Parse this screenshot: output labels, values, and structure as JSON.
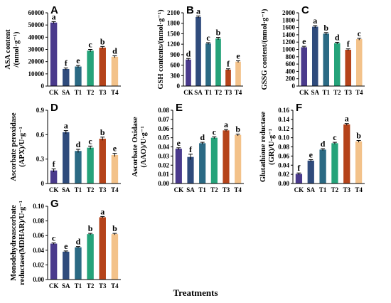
{
  "xlabel": "Treatments",
  "colors": [
    "#4a3a8c",
    "#2f4b7c",
    "#2b6a84",
    "#25a37a",
    "#b5431a",
    "#f3c28a"
  ],
  "chart_data": [
    {
      "type": "bar",
      "panel": "A",
      "categories": [
        "CK",
        "SA",
        "T1",
        "T2",
        "T3",
        "T4"
      ],
      "values": [
        52000,
        14000,
        16000,
        29000,
        31500,
        24000
      ],
      "errors": [
        800,
        800,
        900,
        1000,
        900,
        800
      ],
      "letters": [
        "a",
        "f",
        "e",
        "c",
        "b",
        "d"
      ],
      "ylabel": [
        "ASA content",
        "/(nmol·g⁻¹)"
      ],
      "ylim": [
        0,
        60000
      ],
      "yticks": [
        0,
        10000,
        20000,
        30000,
        40000,
        50000,
        60000
      ],
      "ytick_labels": [
        "0",
        "10000",
        "20000",
        "30000",
        "40000",
        "50000",
        "60000"
      ]
    },
    {
      "type": "bar",
      "panel": "B",
      "categories": [
        "CK",
        "SA",
        "T1",
        "T2",
        "T3",
        "T4"
      ],
      "values": [
        760,
        1980,
        1220,
        1360,
        470,
        700
      ],
      "errors": [
        30,
        30,
        25,
        35,
        25,
        25
      ],
      "letters": [
        "d",
        "a",
        "c",
        "b",
        "f",
        "e"
      ],
      "ylabel": [
        "GSH contents/(nmol·g⁻¹)"
      ],
      "ylim": [
        0,
        2100
      ],
      "yticks": [
        0,
        300,
        600,
        900,
        1200,
        1500,
        1800,
        2100
      ],
      "ytick_labels": [
        "0",
        "300",
        "600",
        "900",
        "1200",
        "1500",
        "1800",
        "2100"
      ]
    },
    {
      "type": "bar",
      "panel": "C",
      "categories": [
        "CK",
        "SA",
        "T1",
        "T2",
        "T3",
        "T4"
      ],
      "values": [
        1060,
        1620,
        1430,
        1170,
        990,
        1280
      ],
      "errors": [
        25,
        30,
        30,
        25,
        25,
        25
      ],
      "letters": [
        "e",
        "a",
        "b",
        "d",
        "f",
        "c"
      ],
      "ylabel": [
        "GSSG content/(nmol·g⁻¹)"
      ],
      "ylim": [
        0,
        2000
      ],
      "yticks": [
        0,
        200,
        400,
        600,
        800,
        1000,
        1200,
        1400,
        1600,
        1800,
        2000
      ],
      "ytick_labels": [
        "0",
        "200",
        "400",
        "600",
        "800",
        "1000",
        "1200",
        "1400",
        "1600",
        "1800",
        "2000"
      ]
    },
    {
      "type": "bar",
      "panel": "D",
      "categories": [
        "CK",
        "SA",
        "T1",
        "T2",
        "T3",
        "T4"
      ],
      "values": [
        0.16,
        0.63,
        0.4,
        0.44,
        0.55,
        0.35
      ],
      "errors": [
        0.02,
        0.02,
        0.02,
        0.02,
        0.02,
        0.02
      ],
      "letters": [
        "f",
        "a",
        "d",
        "c",
        "b",
        "e"
      ],
      "ylabel": [
        "Ascorbate peroxidase",
        "(APX)/U·g⁻¹"
      ],
      "ylim": [
        0,
        0.9
      ],
      "yticks": [
        0,
        0.3,
        0.6,
        0.9
      ],
      "ytick_labels": [
        "0",
        "0.3",
        "0.6",
        "0.9"
      ]
    },
    {
      "type": "bar",
      "panel": "E",
      "categories": [
        "CK",
        "SA",
        "T1",
        "T2",
        "T3",
        "T4"
      ],
      "values": [
        0.038,
        0.029,
        0.044,
        0.05,
        0.058,
        0.053
      ],
      "errors": [
        0.001,
        0.003,
        0.001,
        0.001,
        0.001,
        0.001
      ],
      "letters": [
        "e",
        "f",
        "d",
        "c",
        "a",
        "b"
      ],
      "ylabel": [
        "Ascorbate Oxidase",
        "(AAO)/U·g⁻¹"
      ],
      "ylim": [
        0,
        0.08
      ],
      "yticks": [
        0,
        0.01,
        0.02,
        0.03,
        0.04,
        0.05,
        0.06,
        0.07,
        0.08
      ],
      "ytick_labels": [
        "0.00",
        "0.01",
        "0.02",
        "0.03",
        "0.04",
        "0.05",
        "0.06",
        "0.07",
        "0.08"
      ]
    },
    {
      "type": "bar",
      "panel": "F",
      "categories": [
        "CK",
        "SA",
        "T1",
        "T2",
        "T3",
        "T4"
      ],
      "values": [
        0.021,
        0.05,
        0.074,
        0.088,
        0.129,
        0.092
      ],
      "errors": [
        0.002,
        0.002,
        0.002,
        0.002,
        0.002,
        0.002
      ],
      "letters": [
        "f",
        "e",
        "d",
        "c",
        "a",
        "b"
      ],
      "ylabel": [
        "Glutathione reductase",
        "(GR)/U·g⁻¹"
      ],
      "ylim": [
        0,
        0.16
      ],
      "yticks": [
        0,
        0.02,
        0.04,
        0.06,
        0.08,
        0.1,
        0.12,
        0.14,
        0.16
      ],
      "ytick_labels": [
        "0.00",
        "0.02",
        "0.04",
        "0.06",
        "0.08",
        "0.10",
        "0.12",
        "0.14",
        "0.16"
      ]
    },
    {
      "type": "bar",
      "panel": "G",
      "categories": [
        "CK",
        "SA",
        "T1",
        "T2",
        "T3",
        "T4"
      ],
      "values": [
        0.049,
        0.038,
        0.044,
        0.062,
        0.085,
        0.062
      ],
      "errors": [
        0.001,
        0.001,
        0.001,
        0.001,
        0.001,
        0.001
      ],
      "letters": [
        "c",
        "e",
        "d",
        "b",
        "a",
        "b"
      ],
      "ylabel": [
        "Monodehydroascorbate",
        "reductase(MDHAR)/U·g⁻¹"
      ],
      "ylim": [
        0,
        0.1
      ],
      "yticks": [
        0,
        0.02,
        0.04,
        0.06,
        0.08,
        0.1
      ],
      "ytick_labels": [
        "0.00",
        "0.02",
        "0.04",
        "0.06",
        "0.08",
        "0.10"
      ]
    }
  ]
}
